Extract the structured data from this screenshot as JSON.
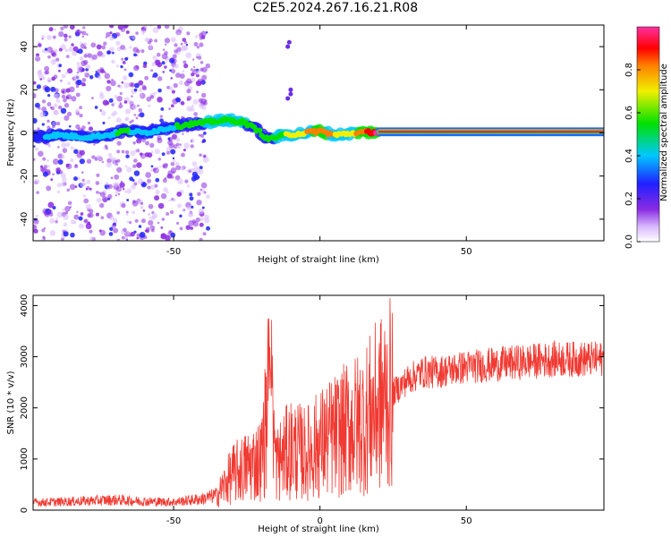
{
  "title": "C2E5.2024.267.16.21.R08",
  "colors": {
    "snr_line": "#f03a32",
    "ridge_peak": "#e82a2a",
    "ridge_mid": "#22e07a",
    "ridge_low": "#1a8cff",
    "noise": "#7a2ae8"
  },
  "chart_data": [
    {
      "id": "spectrogram",
      "type": "heatmap",
      "title": "C2E5.2024.267.16.21.R08",
      "xlabel": "Height of straight line (km)",
      "ylabel": "Frequency (Hz)",
      "xlim": [
        -98,
        97
      ],
      "ylim": [
        -50,
        50
      ],
      "x_ticks": [
        -50,
        0,
        50
      ],
      "x_tick_labels": [
        "-50",
        "",
        "50"
      ],
      "y_ticks": [
        -40,
        -20,
        0,
        20,
        40
      ],
      "y_tick_labels": [
        "-40",
        "-20",
        "0",
        "20",
        "40"
      ],
      "colorbar": {
        "label": "Normalized spectral amplitude",
        "range": [
          0,
          1
        ],
        "ticks": [
          0.0,
          0.2,
          0.4,
          0.6,
          0.8
        ],
        "tick_labels": [
          "0.0",
          "0.2",
          "0.4",
          "0.6",
          "0.8"
        ],
        "colormap": "rainbow (white-purple-blue-cyan-green-yellow-orange-red-magenta)"
      },
      "ridge": [
        {
          "x": -97,
          "y": -2,
          "a": 0.25
        },
        {
          "x": -90,
          "y": -1,
          "a": 0.3
        },
        {
          "x": -80,
          "y": -2,
          "a": 0.3
        },
        {
          "x": -72,
          "y": -1,
          "a": 0.35
        },
        {
          "x": -67,
          "y": 1,
          "a": 0.45
        },
        {
          "x": -60,
          "y": 0,
          "a": 0.3
        },
        {
          "x": -53,
          "y": 2,
          "a": 0.35
        },
        {
          "x": -45,
          "y": 4,
          "a": 0.45
        },
        {
          "x": -38,
          "y": 5,
          "a": 0.5
        },
        {
          "x": -32,
          "y": 6,
          "a": 0.55
        },
        {
          "x": -26,
          "y": 5,
          "a": 0.5
        },
        {
          "x": -21,
          "y": 1,
          "a": 0.45
        },
        {
          "x": -18,
          "y": -3,
          "a": 0.45
        },
        {
          "x": -12,
          "y": -1,
          "a": 0.55
        },
        {
          "x": -5,
          "y": 0,
          "a": 0.7
        },
        {
          "x": 0,
          "y": 1,
          "a": 0.75
        },
        {
          "x": 5,
          "y": -1,
          "a": 0.7
        },
        {
          "x": 12,
          "y": 0,
          "a": 0.7
        },
        {
          "x": 20,
          "y": 0.5,
          "a": 0.95
        },
        {
          "x": 97,
          "y": 0.5,
          "a": 0.95
        }
      ],
      "streak": [
        {
          "x": -11,
          "y": 40
        },
        {
          "x": -10.5,
          "y": 42
        },
        {
          "x": -11,
          "y": 16
        },
        {
          "x": -10,
          "y": 18
        },
        {
          "x": -10,
          "y": 20
        }
      ]
    },
    {
      "id": "snr",
      "type": "line",
      "xlabel": "Height of straight line (km)",
      "ylabel": "SNR (10 * v/v)",
      "xlim": [
        -98,
        97
      ],
      "ylim": [
        0,
        4200
      ],
      "x_ticks": [
        -50,
        0,
        50
      ],
      "x_tick_labels": [
        "-50",
        "0",
        "50"
      ],
      "y_ticks": [
        0,
        1000,
        2000,
        3000,
        4000
      ],
      "y_tick_labels": [
        "0",
        "1000",
        "2000",
        "3000",
        "4000"
      ],
      "series": [
        {
          "name": "",
          "x": [
            -98,
            -90,
            -80,
            -70,
            -60,
            -50,
            -45,
            -40,
            -35,
            -30,
            -25,
            -20,
            -17,
            -15,
            -10,
            -5,
            0,
            5,
            10,
            15,
            20,
            25,
            30,
            35,
            40,
            50,
            60,
            70,
            80,
            90,
            97
          ],
          "y": [
            150,
            160,
            180,
            200,
            170,
            160,
            190,
            220,
            300,
            700,
            850,
            1000,
            2400,
            900,
            1200,
            1100,
            1300,
            1450,
            1600,
            1750,
            2050,
            2300,
            2550,
            2700,
            2700,
            2800,
            2850,
            2900,
            2950,
            2950,
            2950
          ]
        }
      ]
    }
  ]
}
